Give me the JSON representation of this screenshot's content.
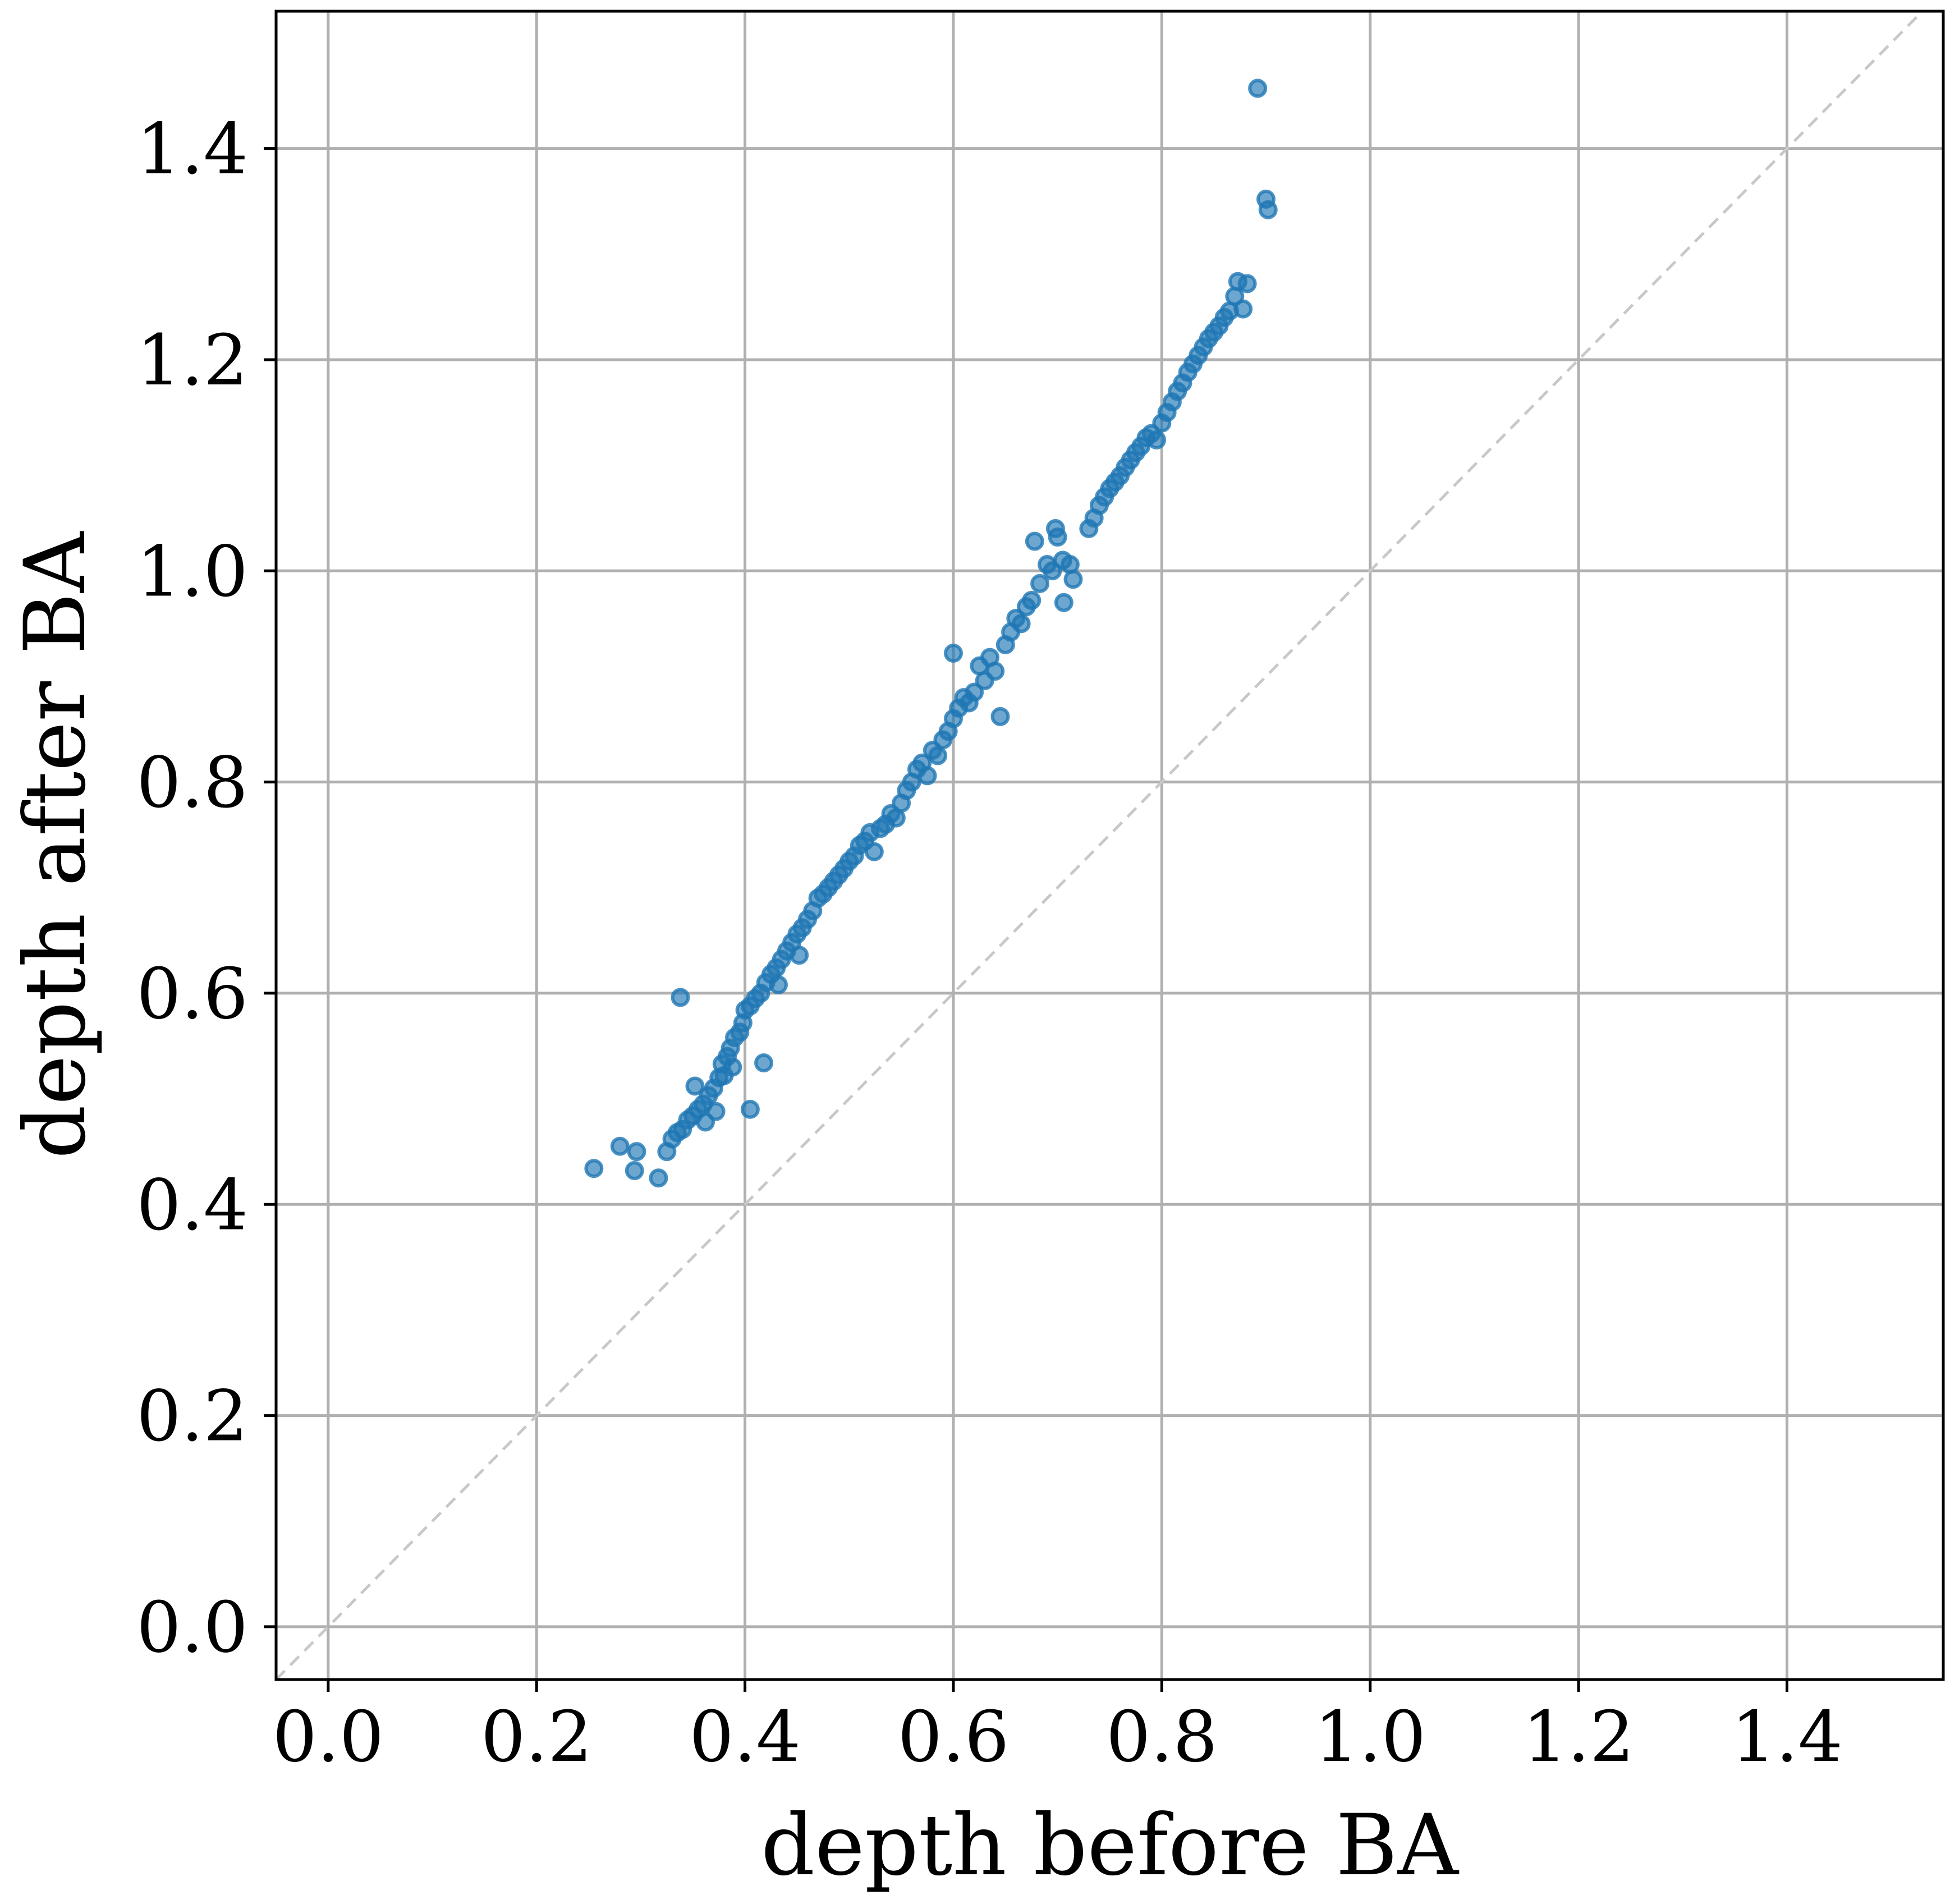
{
  "chart_data": {
    "type": "scatter",
    "title": "",
    "xlabel": "depth before BA",
    "ylabel": "depth after BA",
    "xlim": [
      -0.05,
      1.55
    ],
    "ylim": [
      -0.05,
      1.53
    ],
    "xticks": [
      "0.0",
      "0.2",
      "0.4",
      "0.6",
      "0.8",
      "1.0",
      "1.2",
      "1.4"
    ],
    "yticks": [
      "0.0",
      "0.2",
      "0.4",
      "0.6",
      "0.8",
      "1.0",
      "1.2",
      "1.4"
    ],
    "grid": true,
    "reference_line": {
      "type": "y = x",
      "style": "dashed",
      "color": "#c8c8c8"
    },
    "marker_color": "#1f77b4",
    "series": [
      {
        "points": [
          [
            0.255,
            0.434
          ],
          [
            0.28,
            0.455
          ],
          [
            0.294,
            0.432
          ],
          [
            0.296,
            0.45
          ],
          [
            0.317,
            0.425
          ],
          [
            0.325,
            0.45
          ],
          [
            0.33,
            0.462
          ],
          [
            0.335,
            0.468
          ],
          [
            0.338,
            0.596
          ],
          [
            0.34,
            0.471
          ],
          [
            0.345,
            0.48
          ],
          [
            0.35,
            0.484
          ],
          [
            0.352,
            0.512
          ],
          [
            0.355,
            0.49
          ],
          [
            0.36,
            0.495
          ],
          [
            0.362,
            0.478
          ],
          [
            0.365,
            0.503
          ],
          [
            0.37,
            0.51
          ],
          [
            0.372,
            0.488
          ],
          [
            0.375,
            0.52
          ],
          [
            0.378,
            0.533
          ],
          [
            0.38,
            0.522
          ],
          [
            0.383,
            0.54
          ],
          [
            0.386,
            0.548
          ],
          [
            0.388,
            0.53
          ],
          [
            0.39,
            0.558
          ],
          [
            0.395,
            0.563
          ],
          [
            0.398,
            0.572
          ],
          [
            0.4,
            0.584
          ],
          [
            0.405,
            0.49
          ],
          [
            0.405,
            0.588
          ],
          [
            0.41,
            0.595
          ],
          [
            0.415,
            0.6
          ],
          [
            0.418,
            0.534
          ],
          [
            0.42,
            0.61
          ],
          [
            0.425,
            0.618
          ],
          [
            0.43,
            0.624
          ],
          [
            0.432,
            0.608
          ],
          [
            0.435,
            0.632
          ],
          [
            0.44,
            0.64
          ],
          [
            0.445,
            0.648
          ],
          [
            0.45,
            0.656
          ],
          [
            0.452,
            0.636
          ],
          [
            0.455,
            0.662
          ],
          [
            0.46,
            0.67
          ],
          [
            0.465,
            0.678
          ],
          [
            0.47,
            0.69
          ],
          [
            0.475,
            0.694
          ],
          [
            0.48,
            0.7
          ],
          [
            0.485,
            0.706
          ],
          [
            0.49,
            0.712
          ],
          [
            0.495,
            0.718
          ],
          [
            0.5,
            0.725
          ],
          [
            0.505,
            0.73
          ],
          [
            0.51,
            0.74
          ],
          [
            0.515,
            0.744
          ],
          [
            0.52,
            0.752
          ],
          [
            0.524,
            0.734
          ],
          [
            0.53,
            0.756
          ],
          [
            0.535,
            0.76
          ],
          [
            0.54,
            0.77
          ],
          [
            0.545,
            0.766
          ],
          [
            0.55,
            0.78
          ],
          [
            0.555,
            0.792
          ],
          [
            0.56,
            0.8
          ],
          [
            0.565,
            0.812
          ],
          [
            0.57,
            0.818
          ],
          [
            0.575,
            0.806
          ],
          [
            0.58,
            0.83
          ],
          [
            0.585,
            0.825
          ],
          [
            0.59,
            0.84
          ],
          [
            0.595,
            0.848
          ],
          [
            0.6,
            0.86
          ],
          [
            0.6,
            0.922
          ],
          [
            0.605,
            0.87
          ],
          [
            0.61,
            0.88
          ],
          [
            0.615,
            0.875
          ],
          [
            0.62,
            0.885
          ],
          [
            0.625,
            0.91
          ],
          [
            0.63,
            0.896
          ],
          [
            0.635,
            0.918
          ],
          [
            0.64,
            0.905
          ],
          [
            0.645,
            0.862
          ],
          [
            0.65,
            0.93
          ],
          [
            0.655,
            0.942
          ],
          [
            0.66,
            0.955
          ],
          [
            0.665,
            0.95
          ],
          [
            0.67,
            0.966
          ],
          [
            0.675,
            0.972
          ],
          [
            0.678,
            1.028
          ],
          [
            0.683,
            0.988
          ],
          [
            0.69,
            1.006
          ],
          [
            0.695,
            1.0
          ],
          [
            0.698,
            1.04
          ],
          [
            0.7,
            1.032
          ],
          [
            0.705,
            1.01
          ],
          [
            0.706,
            0.97
          ],
          [
            0.712,
            1.006
          ],
          [
            0.715,
            0.992
          ],
          [
            0.73,
            1.04
          ],
          [
            0.735,
            1.05
          ],
          [
            0.74,
            1.062
          ],
          [
            0.745,
            1.07
          ],
          [
            0.75,
            1.078
          ],
          [
            0.755,
            1.084
          ],
          [
            0.76,
            1.09
          ],
          [
            0.765,
            1.098
          ],
          [
            0.77,
            1.105
          ],
          [
            0.775,
            1.112
          ],
          [
            0.78,
            1.118
          ],
          [
            0.785,
            1.126
          ],
          [
            0.79,
            1.13
          ],
          [
            0.795,
            1.124
          ],
          [
            0.8,
            1.14
          ],
          [
            0.805,
            1.15
          ],
          [
            0.81,
            1.16
          ],
          [
            0.815,
            1.17
          ],
          [
            0.82,
            1.178
          ],
          [
            0.825,
            1.188
          ],
          [
            0.83,
            1.196
          ],
          [
            0.835,
            1.204
          ],
          [
            0.84,
            1.212
          ],
          [
            0.845,
            1.22
          ],
          [
            0.85,
            1.226
          ],
          [
            0.855,
            1.232
          ],
          [
            0.86,
            1.24
          ],
          [
            0.865,
            1.246
          ],
          [
            0.87,
            1.26
          ],
          [
            0.873,
            1.274
          ],
          [
            0.878,
            1.248
          ],
          [
            0.882,
            1.272
          ],
          [
            0.892,
            1.457
          ],
          [
            0.9,
            1.352
          ],
          [
            0.902,
            1.342
          ]
        ]
      }
    ]
  }
}
